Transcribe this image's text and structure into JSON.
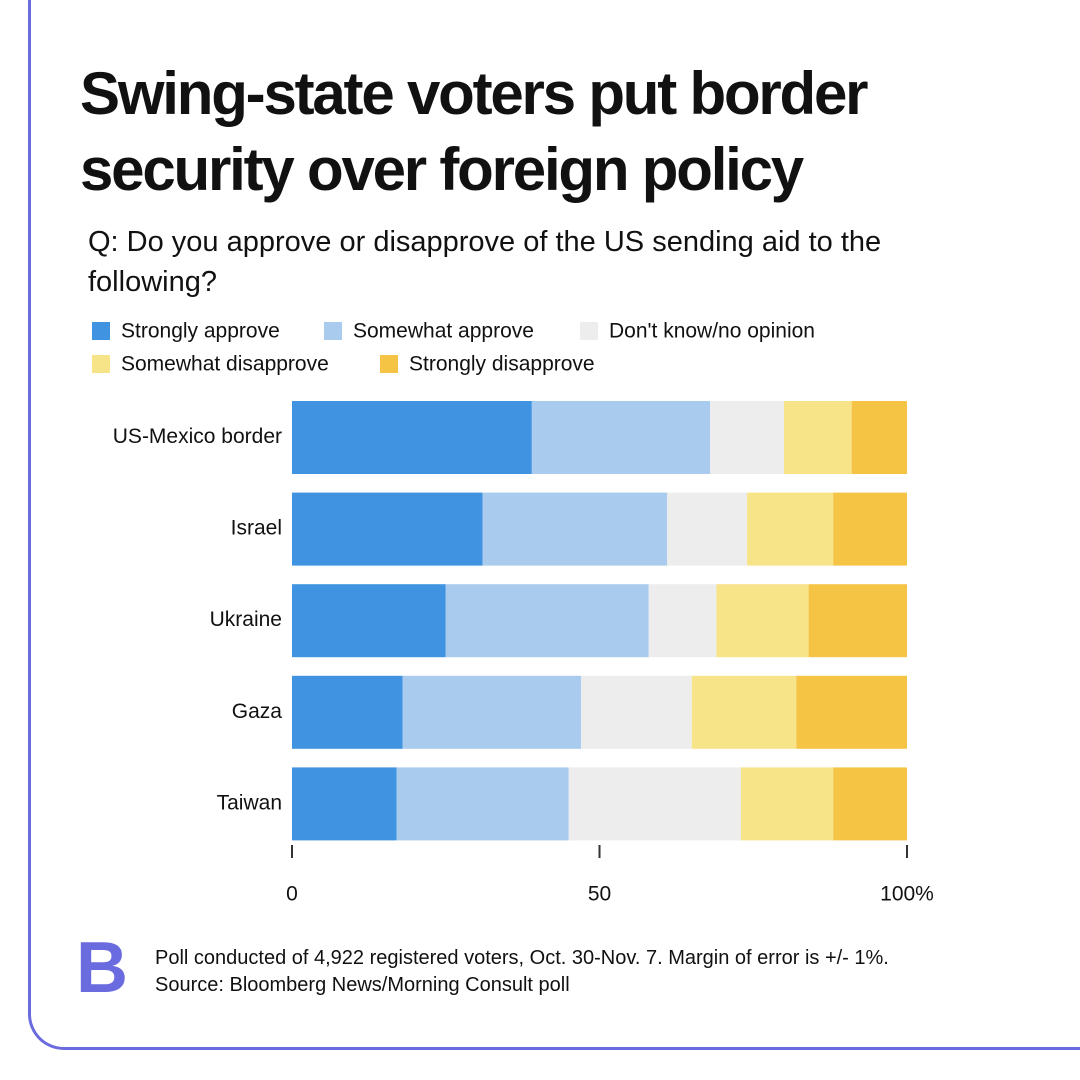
{
  "chart_data": {
    "type": "stacked-barh",
    "title": "Swing-state voters put border security over foreign policy",
    "subtitle": "Q: Do you approve or disapprove of the US sending aid to the following?",
    "categories": [
      "US-Mexico border",
      "Israel",
      "Ukraine",
      "Gaza",
      "Taiwan"
    ],
    "series": [
      {
        "name": "Strongly approve",
        "color": "#3f93e0",
        "values": [
          39,
          31,
          25,
          18,
          17
        ]
      },
      {
        "name": "Somewhat approve",
        "color": "#a8cbee",
        "values": [
          29,
          30,
          33,
          29,
          28
        ]
      },
      {
        "name": "Don't know/no opinion",
        "color": "#ededed",
        "values": [
          12,
          13,
          11,
          18,
          28
        ]
      },
      {
        "name": "Somewhat disapprove",
        "color": "#f7e388",
        "values": [
          11,
          14,
          15,
          17,
          15
        ]
      },
      {
        "name": "Strongly disapprove",
        "color": "#f5c445",
        "values": [
          9,
          12,
          16,
          18,
          12
        ]
      }
    ],
    "xlim": [
      0,
      100
    ],
    "xticks": [
      0,
      50,
      {
        "value": 100,
        "label": "100%"
      }
    ],
    "logo": "B",
    "notes": [
      "Poll conducted of 4,922 registered voters, Oct. 30-Nov. 7. Margin of error is +/- 1%.",
      "Source: Bloomberg News/Morning Consult poll"
    ]
  }
}
